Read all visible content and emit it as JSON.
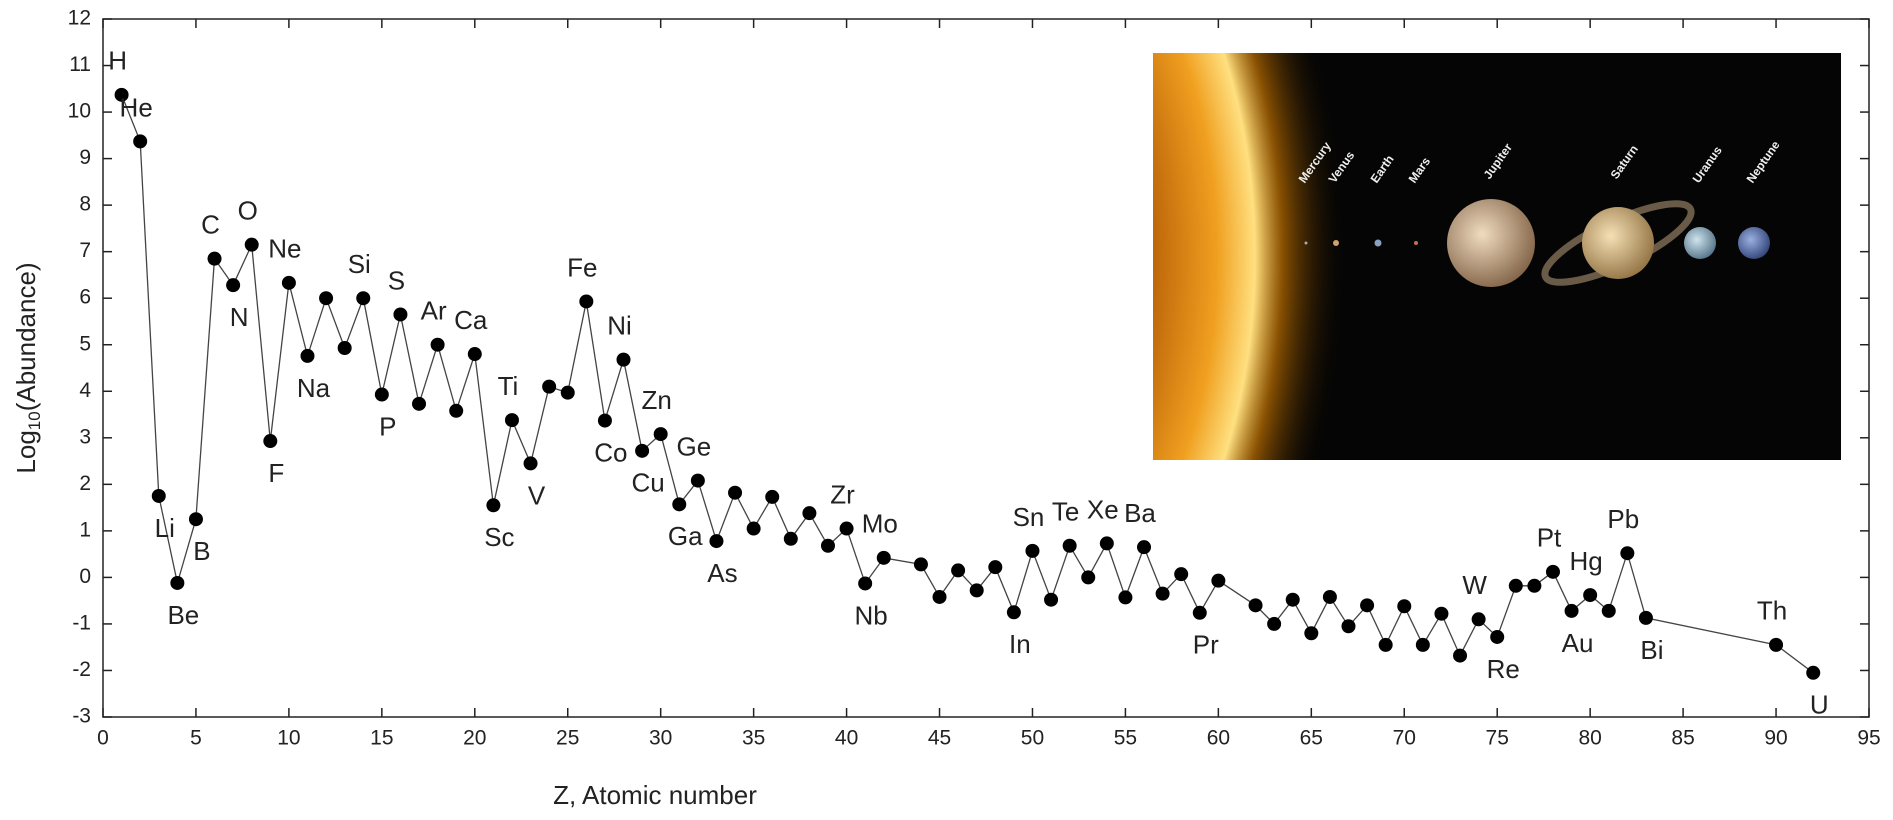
{
  "chart_data": {
    "type": "line",
    "xlabel": "Z, Atomic number",
    "ylabel": [
      "Log",
      "10",
      "(Abundance)"
    ],
    "x": [
      1,
      2,
      3,
      4,
      5,
      6,
      7,
      8,
      9,
      10,
      11,
      12,
      13,
      14,
      15,
      16,
      17,
      18,
      19,
      20,
      21,
      22,
      23,
      24,
      25,
      26,
      27,
      28,
      29,
      30,
      31,
      32,
      33,
      34,
      35,
      36,
      37,
      38,
      39,
      40,
      41,
      42,
      44,
      45,
      46,
      47,
      48,
      49,
      50,
      51,
      52,
      53,
      54,
      55,
      56,
      57,
      58,
      59,
      60,
      62,
      63,
      64,
      65,
      66,
      67,
      68,
      69,
      70,
      71,
      72,
      73,
      74,
      75,
      76,
      77,
      78,
      79,
      80,
      81,
      82,
      83,
      90,
      92
    ],
    "values": [
      10.37,
      9.37,
      1.75,
      -0.12,
      1.25,
      6.85,
      6.28,
      7.15,
      2.93,
      6.33,
      4.76,
      6.0,
      4.93,
      6.0,
      3.93,
      5.65,
      3.73,
      5.0,
      3.58,
      4.8,
      1.55,
      3.38,
      2.45,
      4.1,
      3.97,
      5.93,
      3.37,
      4.68,
      2.72,
      3.08,
      1.57,
      2.08,
      0.78,
      1.82,
      1.05,
      1.73,
      0.83,
      1.38,
      0.68,
      1.05,
      -0.13,
      0.42,
      0.28,
      -0.42,
      0.15,
      -0.28,
      0.22,
      -0.75,
      0.57,
      -0.48,
      0.68,
      0.0,
      0.73,
      -0.43,
      0.65,
      -0.35,
      0.07,
      -0.76,
      -0.07,
      -0.6,
      -1.0,
      -0.48,
      -1.2,
      -0.42,
      -1.05,
      -0.6,
      -1.45,
      -0.62,
      -1.45,
      -0.78,
      -1.68,
      -0.9,
      -1.28,
      -0.18,
      -0.18,
      0.12,
      -0.72,
      -0.38,
      -0.72,
      0.52,
      -0.87,
      -1.45,
      -2.05
    ],
    "point_labels": [
      "H",
      "He",
      "Li",
      "Be",
      "B",
      "C",
      "N",
      "O",
      "F",
      "Ne",
      "Na",
      null,
      null,
      "Si",
      "P",
      "S",
      null,
      "Ar",
      null,
      "Ca",
      "Sc",
      "Ti",
      "V",
      null,
      null,
      "Fe",
      "Co",
      "Ni",
      "Cu",
      "Zn",
      "Ga",
      "Ge",
      "As",
      null,
      null,
      null,
      null,
      null,
      null,
      "Zr",
      "Nb",
      "Mo",
      null,
      null,
      null,
      null,
      null,
      "In",
      "Sn",
      null,
      "Te",
      null,
      "Xe",
      null,
      "Ba",
      null,
      null,
      "Pr",
      null,
      null,
      null,
      null,
      null,
      null,
      null,
      null,
      null,
      null,
      null,
      null,
      null,
      "W",
      "Re",
      null,
      null,
      "Pt",
      "Au",
      "Hg",
      null,
      "Pb",
      "Bi",
      "Th",
      "U"
    ],
    "color": "#000000",
    "xlim": [
      0,
      95
    ],
    "xticks": [
      0,
      5,
      10,
      15,
      20,
      25,
      30,
      35,
      40,
      45,
      50,
      55,
      60,
      65,
      70,
      75,
      80,
      85,
      90,
      95
    ],
    "ylim": [
      -3,
      12
    ],
    "yticks": [
      -3,
      -2,
      -1,
      0,
      1,
      2,
      3,
      4,
      5,
      6,
      7,
      8,
      9,
      10,
      11,
      12
    ],
    "grid": false
  },
  "inset_labels": [
    "Mercury",
    "Venus",
    "Earth",
    "Mars",
    "Jupiter",
    "Saturn",
    "Uranus",
    "Neptune"
  ]
}
